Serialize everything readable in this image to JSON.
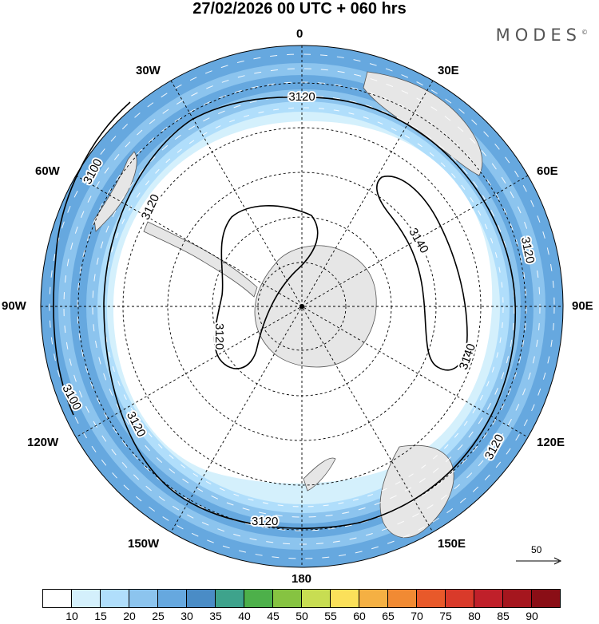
{
  "title": "27/02/2026  00 UTC  + 060 hrs",
  "brand": "MODES",
  "brand_mark": "©",
  "longitude_labels": {
    "top": "0",
    "top_right": "30E",
    "right_upper": "60E",
    "right": "90E",
    "right_lower": "120E",
    "bottom_right": "150E",
    "bottom": "180",
    "bottom_left": "150W",
    "left_lower": "120W",
    "left": "90W",
    "left_upper": "60W",
    "top_left": "30W"
  },
  "contour_labels": [
    "3120",
    "3100",
    "3120",
    "3140",
    "3140",
    "3120",
    "3120",
    "3120",
    "3120",
    "3100",
    "3120"
  ],
  "reference_vector": {
    "label": "50",
    "value": 50
  },
  "colorbar": {
    "ticks": [
      "10",
      "15",
      "20",
      "25",
      "30",
      "35",
      "40",
      "45",
      "50",
      "55",
      "60",
      "65",
      "70",
      "75",
      "80",
      "85",
      "90"
    ],
    "colors": [
      "#ffffff",
      "#d4f0fc",
      "#b0defb",
      "#8cc4ee",
      "#66a8df",
      "#4a8cc6",
      "#3ea38c",
      "#4db04a",
      "#86c341",
      "#c8dd52",
      "#fbe05a",
      "#f5b043",
      "#f18a33",
      "#e8592a",
      "#d93a2a",
      "#c0202a",
      "#a5161e",
      "#8a0e16"
    ]
  },
  "colors": {
    "land": "#e6e6e6",
    "coast": "#555555",
    "contour": "#000000",
    "grid": "#000000"
  }
}
